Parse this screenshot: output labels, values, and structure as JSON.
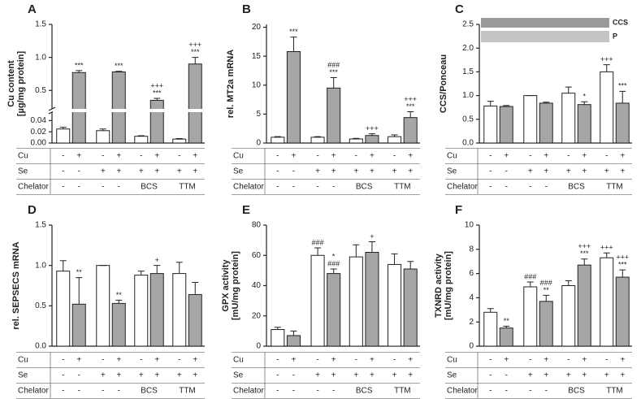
{
  "conditions": {
    "rows": [
      {
        "name": "Cu",
        "values": [
          "-",
          "+",
          "-",
          "+",
          "-",
          "+",
          "-",
          "+"
        ]
      },
      {
        "name": "Se",
        "values": [
          "-",
          "-",
          "+",
          "+",
          "+",
          "+",
          "+",
          "+"
        ]
      },
      {
        "name": "Chelator",
        "values": [
          "-",
          "-",
          "-",
          "-",
          "BCS",
          null,
          "TTM",
          null
        ]
      }
    ]
  },
  "chart_data": [
    {
      "type": "bar",
      "label": "A",
      "ylabel": [
        "Cu content",
        "[µg/mg protein]"
      ],
      "values": [
        0.025,
        0.77,
        0.022,
        0.78,
        0.012,
        0.35,
        0.007,
        0.9
      ],
      "errors": [
        0.003,
        0.03,
        0.003,
        0.01,
        0.001,
        0.03,
        0.001,
        0.1
      ],
      "colors": [
        "#ffffff",
        "#a6a6a6",
        "#ffffff",
        "#a6a6a6",
        "#ffffff",
        "#a6a6a6",
        "#ffffff",
        "#a6a6a6"
      ],
      "annotations": [
        [],
        [
          "***"
        ],
        [],
        [
          "***"
        ],
        [],
        [
          "+++",
          "***"
        ],
        [],
        [
          "+++",
          "***"
        ]
      ],
      "ylim": [
        0,
        1.5
      ],
      "axis_break": [
        0.055,
        0.22
      ],
      "yticks": [
        {
          "value": 0,
          "label": "0.00"
        },
        {
          "value": 0.02,
          "label": "0.02"
        },
        {
          "value": 0.04,
          "label": "0.04"
        },
        0.5,
        {
          "value": 1,
          "label": "1.0"
        },
        1.5
      ]
    },
    {
      "type": "bar",
      "label": "B",
      "ylabel": [
        "rel. MT2a mRNA"
      ],
      "values": [
        1,
        15.8,
        1,
        9.5,
        0.7,
        1.3,
        1.1,
        4.4
      ],
      "errors": [
        0.1,
        2.5,
        0.1,
        1.8,
        0.1,
        0.3,
        0.3,
        1.0
      ],
      "colors": [
        "#ffffff",
        "#a6a6a6",
        "#ffffff",
        "#a6a6a6",
        "#ffffff",
        "#a6a6a6",
        "#ffffff",
        "#a6a6a6"
      ],
      "annotations": [
        [],
        [
          "***"
        ],
        [],
        [
          "###",
          "***"
        ],
        [],
        [
          "+++"
        ],
        [],
        [
          "+++",
          "***"
        ]
      ],
      "ylim": [
        0,
        20.5
      ],
      "yticks": [
        0,
        5,
        10,
        15,
        20
      ]
    },
    {
      "type": "bar",
      "label": "C",
      "ylabel": [
        "CCS/Ponceau"
      ],
      "values": [
        0.78,
        0.77,
        1.0,
        0.84,
        1.05,
        0.81,
        1.5,
        0.84
      ],
      "errors": [
        0.1,
        0.02,
        0,
        0.02,
        0.13,
        0.06,
        0.15,
        0.25
      ],
      "colors": [
        "#ffffff",
        "#a6a6a6",
        "#ffffff",
        "#a6a6a6",
        "#ffffff",
        "#a6a6a6",
        "#ffffff",
        "#a6a6a6"
      ],
      "annotations": [
        [],
        [],
        [],
        [],
        [],
        [
          "*"
        ],
        [
          "+++"
        ],
        [
          "***"
        ]
      ],
      "inset_labels": [
        "CCS",
        "P"
      ],
      "ylim": [
        0,
        2.5
      ],
      "yticks": [
        {
          "value": 0,
          "label": "0.0"
        },
        0.5,
        {
          "value": 1,
          "label": "1.0"
        },
        1.5,
        {
          "value": 2,
          "label": "2.0"
        },
        2.5
      ]
    },
    {
      "type": "bar",
      "label": "D",
      "ylabel": [
        "rel. SEPSECS mRNA"
      ],
      "values": [
        0.93,
        0.52,
        1.0,
        0.53,
        0.88,
        0.9,
        0.9,
        0.64
      ],
      "errors": [
        0.13,
        0.33,
        0,
        0.04,
        0.05,
        0.1,
        0.14,
        0.15
      ],
      "colors": [
        "#ffffff",
        "#a6a6a6",
        "#ffffff",
        "#a6a6a6",
        "#ffffff",
        "#a6a6a6",
        "#ffffff",
        "#a6a6a6"
      ],
      "annotations": [
        [],
        [
          "**"
        ],
        [],
        [
          "**"
        ],
        [],
        [
          "+"
        ],
        [],
        []
      ],
      "ylim": [
        0,
        1.5
      ],
      "yticks": [
        {
          "value": 0,
          "label": "0.0"
        },
        0.5,
        {
          "value": 1,
          "label": "1.0"
        },
        1.5
      ]
    },
    {
      "type": "bar",
      "label": "E",
      "ylabel": [
        "GPX activity",
        "[mU/mg protein]"
      ],
      "values": [
        11,
        7,
        60,
        48,
        59,
        62,
        54,
        51
      ],
      "errors": [
        1.5,
        3,
        5,
        3,
        8,
        7,
        7,
        5
      ],
      "colors": [
        "#ffffff",
        "#a6a6a6",
        "#ffffff",
        "#a6a6a6",
        "#ffffff",
        "#a6a6a6",
        "#ffffff",
        "#a6a6a6"
      ],
      "annotations": [
        [],
        [],
        [
          "###"
        ],
        [
          "*",
          "###"
        ],
        [],
        [
          "+"
        ],
        [],
        []
      ],
      "ylim": [
        0,
        80
      ],
      "yticks": [
        0,
        20,
        40,
        60,
        80
      ]
    },
    {
      "type": "bar",
      "label": "F",
      "ylabel": [
        "TXNRD activity",
        "[mU/mg protein]"
      ],
      "values": [
        2.8,
        1.5,
        4.9,
        3.7,
        5,
        6.7,
        7.3,
        5.7
      ],
      "errors": [
        0.3,
        0.15,
        0.4,
        0.5,
        0.4,
        0.5,
        0.4,
        0.6
      ],
      "colors": [
        "#ffffff",
        "#a6a6a6",
        "#ffffff",
        "#a6a6a6",
        "#ffffff",
        "#a6a6a6",
        "#ffffff",
        "#a6a6a6"
      ],
      "annotations": [
        [],
        [
          "**"
        ],
        [
          "###"
        ],
        [
          "###",
          "**"
        ],
        [],
        [
          "+++",
          "***"
        ],
        [
          "+++"
        ],
        [
          "+++",
          "***"
        ]
      ],
      "ylim": [
        0,
        10
      ],
      "yticks": [
        0,
        2,
        4,
        6,
        8,
        10
      ]
    }
  ]
}
